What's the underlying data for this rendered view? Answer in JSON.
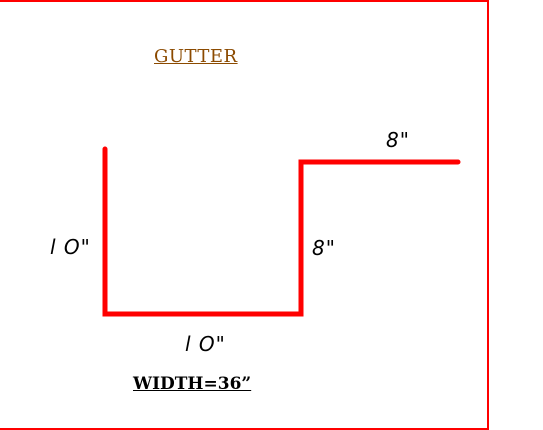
{
  "title": "GUTTER",
  "dimensions": {
    "left_side": "l O\"",
    "bottom": "l O\"",
    "right_side": "8\"",
    "top_flange": "8\""
  },
  "width_label": "WIDTH=36”",
  "colors": {
    "profile_line": "#ff0000",
    "frame": "#ff0000",
    "title_text": "#8b4a00",
    "label_text": "#000000"
  }
}
